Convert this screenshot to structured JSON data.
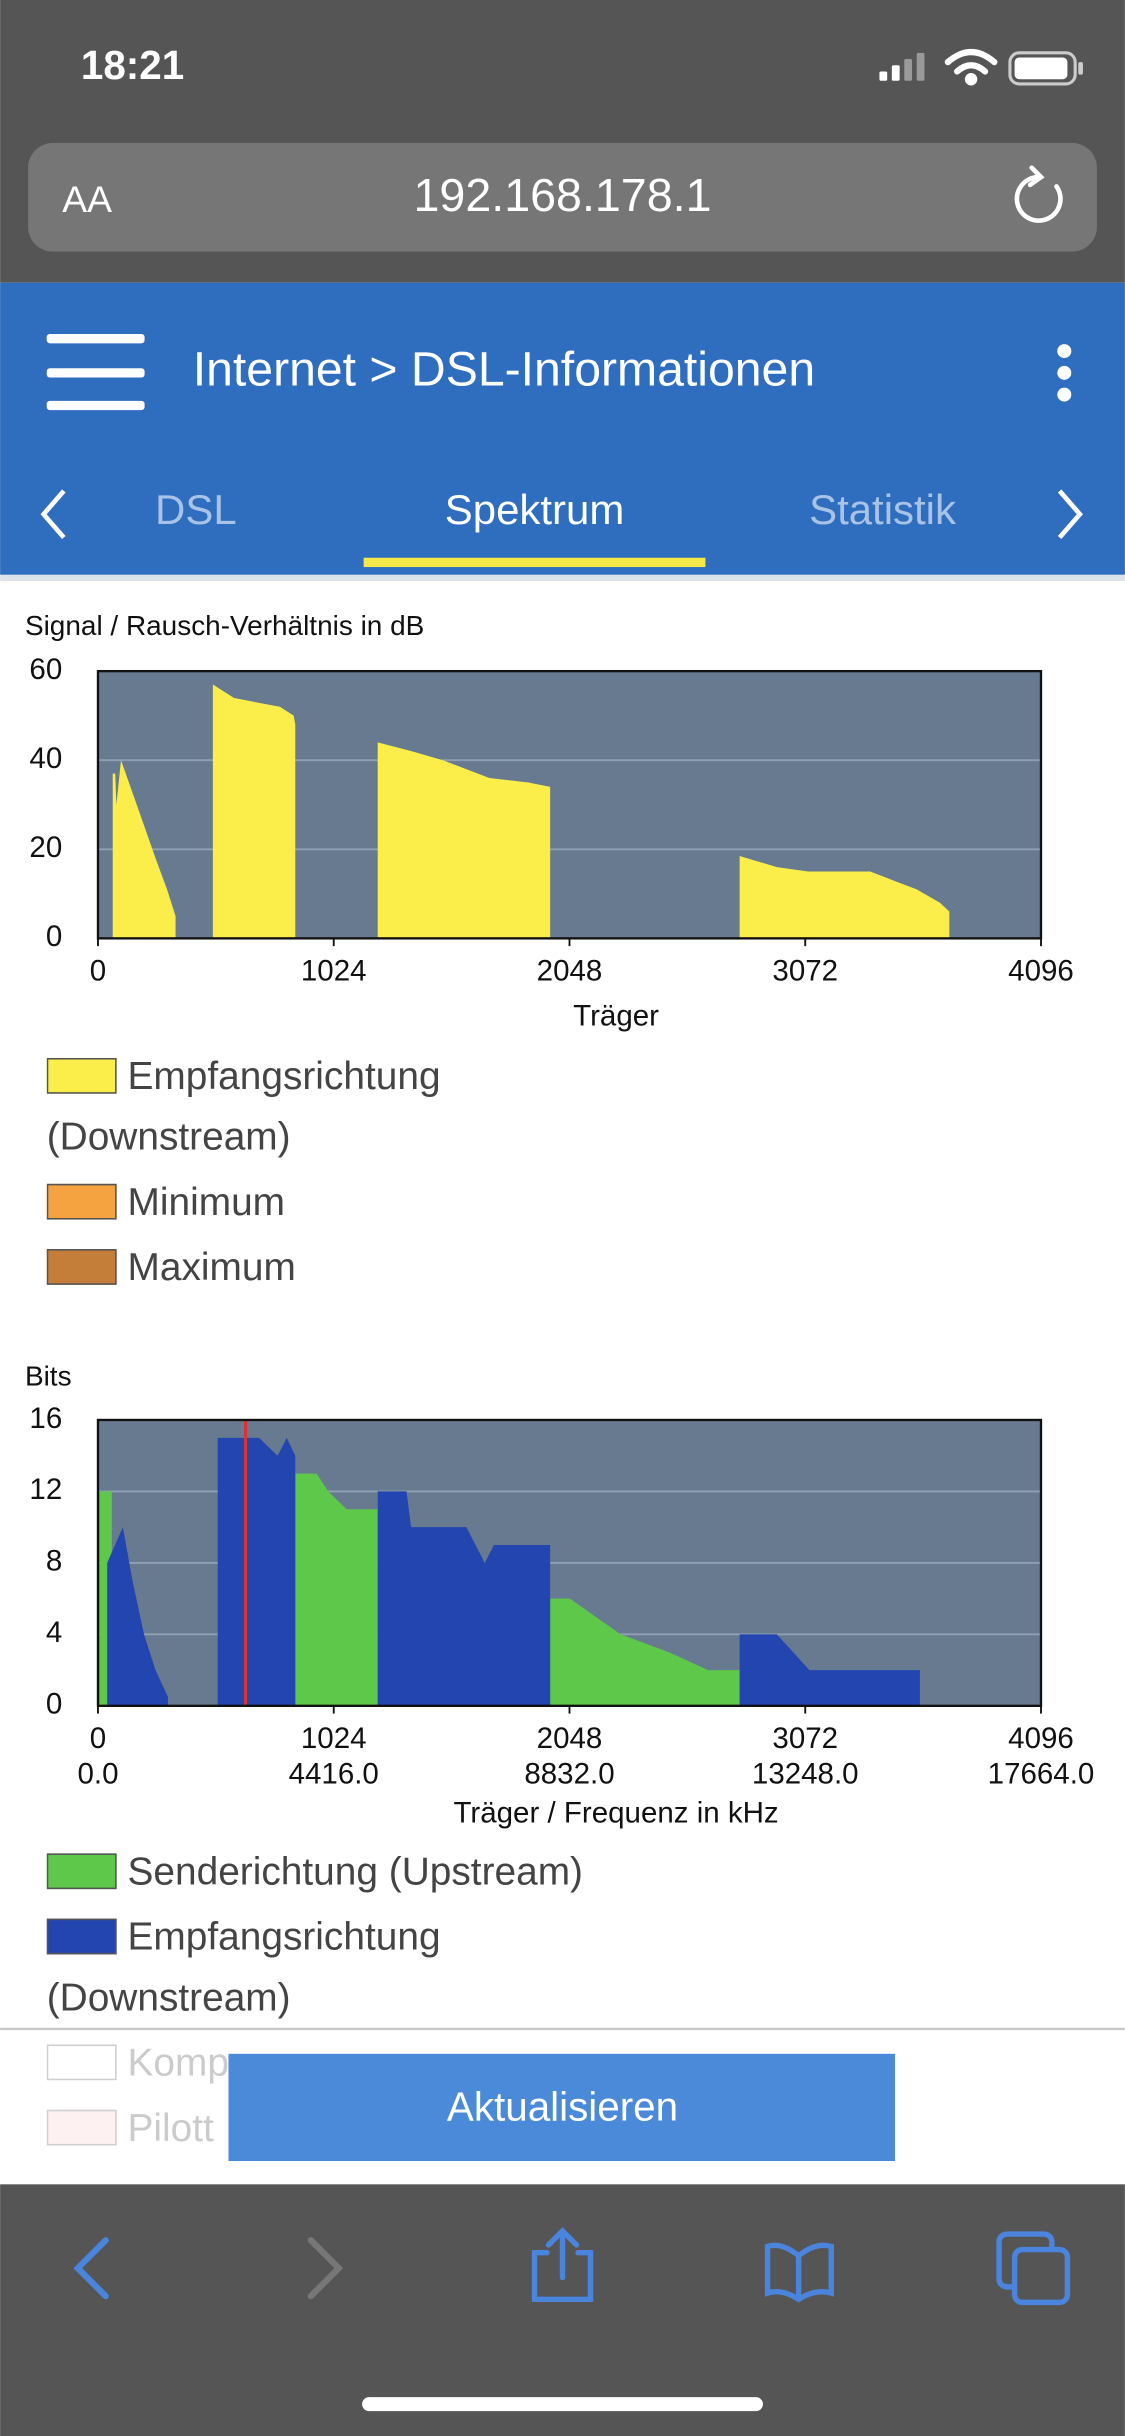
{
  "status_bar": {
    "time": "18:21"
  },
  "browser": {
    "text_size": "AA",
    "url": "192.168.178.1"
  },
  "header": {
    "breadcrumb": "Internet > DSL-Informationen"
  },
  "tabs": [
    "DSL",
    "Spektrum",
    "Statistik"
  ],
  "active_tab": 1,
  "chart_data": [
    {
      "type": "area",
      "title": "Signal / Rausch-Verhältnis in dB",
      "x_label": "Träger",
      "xlim": [
        0,
        4096
      ],
      "xticks": [
        0,
        1024,
        2048,
        3072,
        4096
      ],
      "ylim": [
        0,
        60
      ],
      "yticks": [
        0,
        20,
        40,
        60
      ],
      "grid": true,
      "plot_color": "#687a8f",
      "series": [
        {
          "name": "Empfangsrichtung (Downstream)",
          "color": "#fbee4a",
          "x": [
            64,
            64,
            75,
            80,
            100,
            182,
            250,
            300,
            337,
            337,
            499,
            499,
            590,
            688,
            790,
            850,
            857,
            857,
            1215,
            1215,
            1363,
            1498,
            1700,
            1870,
            1964,
            1964,
            2787,
            2787,
            2949,
            3084,
            3354,
            3455,
            3556,
            3657,
            3698,
            3698
          ],
          "values": [
            0,
            37,
            37,
            30,
            40,
            28,
            18,
            11,
            5,
            0,
            0,
            57,
            54,
            53,
            52,
            50,
            48,
            0,
            0,
            44,
            42,
            40,
            36,
            35,
            34,
            0,
            0,
            18.5,
            16,
            15,
            15,
            13,
            11,
            8,
            6,
            0
          ]
        }
      ],
      "legend_extra": [
        {
          "name": "Minimum",
          "color": "#f4a340"
        },
        {
          "name": "Maximum",
          "color": "#c57e3a"
        }
      ]
    },
    {
      "type": "area",
      "title": "Bits",
      "x_label": "Träger / Frequenz in kHz",
      "xlim": [
        0,
        4096
      ],
      "xticks": [
        0,
        1024,
        2048,
        3072,
        4096
      ],
      "x2lim": [
        0,
        17664
      ],
      "x2ticks": [
        {
          "value": 0,
          "label": "0.0"
        },
        {
          "value": 4416,
          "label": "4416.0"
        },
        {
          "value": 8832,
          "label": "8832.0"
        },
        {
          "value": 13248,
          "label": "13248.0"
        },
        {
          "value": 17664,
          "label": "17664.0"
        }
      ],
      "ylim": [
        0,
        16
      ],
      "yticks": [
        0,
        4,
        8,
        12,
        16
      ],
      "grid": true,
      "plot_color": "#687a8f",
      "series": [
        {
          "name": "Senderichtung (Upstream)",
          "color": "#5ec84a",
          "x": [
            7,
            7,
            60,
            60,
            857,
            857,
            950,
            1000,
            1080,
            1215,
            1215,
            1964,
            1964,
            2050,
            2270,
            2480,
            2650,
            2787,
            2787
          ],
          "values": [
            0,
            12,
            12,
            0,
            0,
            13,
            13,
            12,
            11,
            11,
            0,
            0,
            6,
            6,
            4,
            3,
            2,
            2,
            0
          ]
        },
        {
          "name": "Empfangsrichtung (Downstream)",
          "color": "#2345b0",
          "x": [
            40,
            40,
            108,
            150,
            200,
            250,
            304,
            304,
            520,
            520,
            700,
            780,
            820,
            857,
            857,
            1215,
            1215,
            1340,
            1360,
            1600,
            1680,
            1720,
            1964,
            1964,
            2787,
            2787,
            2949,
            3090,
            3570,
            3570
          ],
          "values": [
            0,
            8,
            10,
            7,
            4,
            2,
            0.5,
            0,
            0,
            15,
            15,
            14,
            15,
            14,
            0,
            0,
            12,
            12,
            10,
            10,
            8,
            9,
            9,
            0,
            0,
            4,
            4,
            2,
            2,
            0
          ]
        }
      ],
      "markers": [
        {
          "x": 641,
          "color": "#e03030"
        }
      ],
      "legend_extra": [
        {
          "name": "Komp",
          "color": "#ffffff"
        },
        {
          "name": "Pilott",
          "color": "#f8cccc"
        }
      ]
    }
  ],
  "button": "Aktualisieren"
}
